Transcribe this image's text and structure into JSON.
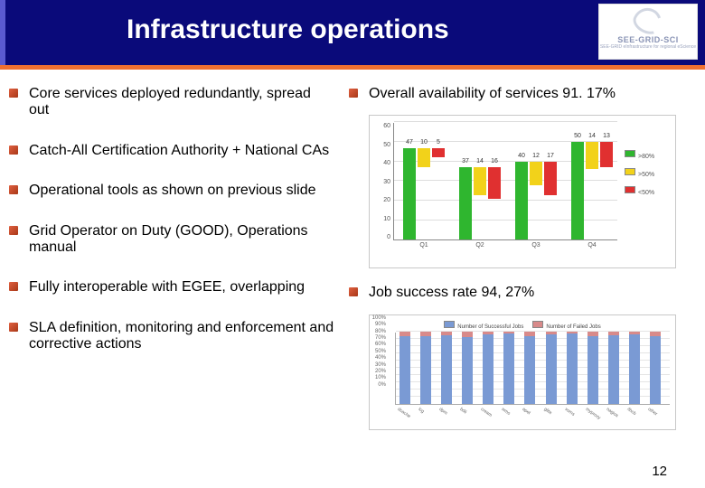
{
  "title": "Infrastructure operations",
  "logo": {
    "text": "SEE-GRID-SCI",
    "sub": "SEE-GRID eInfrastructure for regional eScience"
  },
  "page_number": "12",
  "left_bullets": [
    "Core services deployed redundantly, spread out",
    "Catch-All Certification Authority + National CAs",
    "Operational tools as shown on previous slide",
    "Grid Operator on Duty (GOOD), Operations manual",
    "Fully interoperable with EGEE, overlapping",
    "SLA definition, monitoring and enforcement and corrective actions"
  ],
  "right_bullets": [
    "Overall availability of services 91. 17%",
    "Job success rate 94, 27%"
  ],
  "availability_chart": {
    "type": "bar",
    "ymax": 60,
    "yticks": [
      0,
      10,
      20,
      30,
      40,
      50,
      60
    ],
    "categories": [
      "Q1",
      "Q2",
      "Q3",
      "Q4"
    ],
    "series": [
      {
        "name": ">80%",
        "color": "#2fb62f",
        "values": [
          47,
          37,
          40,
          50
        ]
      },
      {
        "name": ">50%",
        "color": "#f2d21a",
        "values": [
          10,
          14,
          12,
          14
        ]
      },
      {
        "name": "<50%",
        "color": "#e03030",
        "values": [
          5,
          16,
          17,
          13
        ]
      }
    ],
    "bg": "#ffffff",
    "grid_color": "#dddddd",
    "text_color": "#555555"
  },
  "job_chart": {
    "type": "stacked-bar",
    "legend": [
      "Number of Successful Jobs",
      "Number of Failed Jobs"
    ],
    "colors": {
      "success": "#7a9ad4",
      "fail": "#d88a8a"
    },
    "ymax_pct": 100,
    "yticks": [
      "0%",
      "10%",
      "20%",
      "30%",
      "40%",
      "50%",
      "60%",
      "70%",
      "80%",
      "90%",
      "100%"
    ],
    "categories": [
      "dcache",
      "lcg",
      "dpm",
      "bdii",
      "cream",
      "wms",
      "apel",
      "glite",
      "voms",
      "myproxy",
      "nagios",
      "/lhcb",
      "other"
    ],
    "fail_pct": [
      6,
      7,
      5,
      8,
      4,
      3,
      6,
      4,
      3,
      7,
      5,
      4,
      6
    ]
  }
}
